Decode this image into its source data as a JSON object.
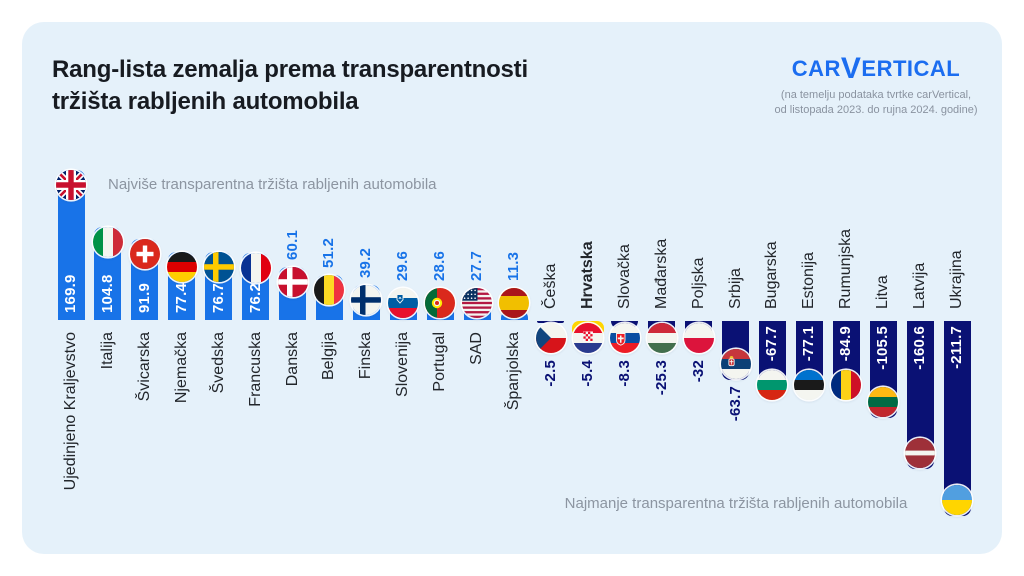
{
  "title": {
    "line1": "Rang-lista zemalja prema transparentnosti",
    "line2": "tržišta rabljenih automobila"
  },
  "logo": {
    "prefix": "CAR",
    "v": "V",
    "suffix": "ERTICAL",
    "subline1": "(na temelju podataka tvrtke carVertical,",
    "subline2": "od listopada 2023. do rujna 2024. godine)"
  },
  "annotations": {
    "top": "Najviše transparentna tržišta rabljenih automobila",
    "bottom": "Najmanje transparentna tržišta rabljenih automobila"
  },
  "chart_data": {
    "type": "bar",
    "orientation": "vertical-columns-diverging",
    "title": "Rang-lista zemalja prema transparentnosti tržišta rabljenih automobila",
    "categories": [
      "Ujedinjeno Kraljevstvo",
      "Italija",
      "Švicarska",
      "Njemačka",
      "Švedska",
      "Francuska",
      "Danska",
      "Belgija",
      "Finska",
      "Slovenija",
      "Portugal",
      "SAD",
      "Španjolska",
      "Češka",
      "Hrvatska",
      "Slovačka",
      "Mađarska",
      "Poljska",
      "Srbija",
      "Bugarska",
      "Estonija",
      "Rumunjska",
      "Litva",
      "Latvija",
      "Ukrajina"
    ],
    "values": [
      169.9,
      104.8,
      91.9,
      77.4,
      76.7,
      76.2,
      60.1,
      51.2,
      39.2,
      29.6,
      28.6,
      27.7,
      11.3,
      -2.5,
      -5.4,
      -8.3,
      -25.3,
      -32,
      -63.7,
      -67.7,
      -77.1,
      -84.9,
      -105.5,
      -160.6,
      -211.7
    ],
    "value_labels": [
      "169.9",
      "104.8",
      "91.9",
      "77.4",
      "76.7",
      "76.2",
      "60.1",
      "51.2",
      "39.2",
      "29.6",
      "28.6",
      "27.7",
      "11.3",
      "-2.5",
      "-5.4",
      "-8.3",
      "-25.3",
      "-32",
      "-63.7",
      "-67.7",
      "-77.1",
      "-84.9",
      "-105.5",
      "-160.6",
      "-211.7"
    ],
    "flags": [
      "gb",
      "it",
      "ch",
      "de",
      "se",
      "fr",
      "dk",
      "be",
      "fi",
      "si",
      "pt",
      "us",
      "es",
      "cz",
      "hr",
      "sk",
      "hu",
      "pl",
      "rs",
      "bg",
      "ee",
      "ro",
      "lt",
      "lv",
      "ua"
    ],
    "highlight": {
      "country": "Hrvatska",
      "color": "#ffd500"
    },
    "colors": {
      "positive": "#1873e8",
      "negative": "#0a1174",
      "background_card": "#e5f1fa"
    },
    "baseline_value": 0,
    "ylim": [
      -220,
      175
    ],
    "grid": false,
    "legend": "none"
  }
}
